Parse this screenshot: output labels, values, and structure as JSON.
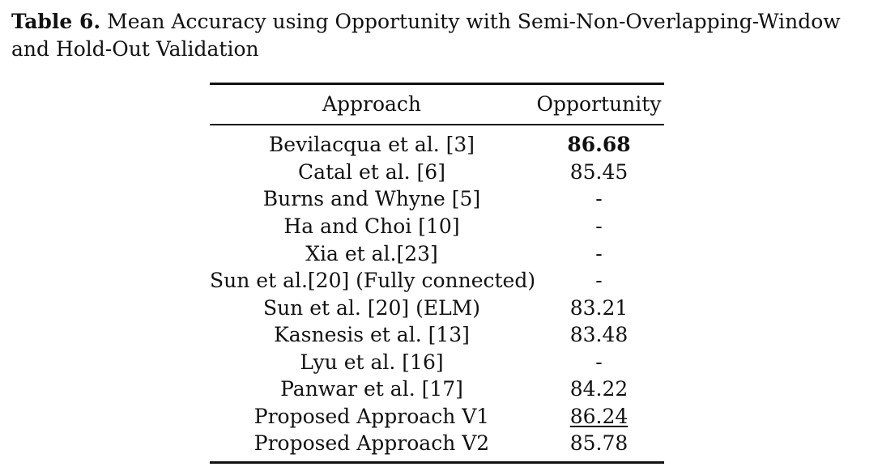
{
  "caption": {
    "label": "Table 6.",
    "text": "Mean Accuracy using Opportunity with Semi-Non-Overlapping-Window and Hold-Out Validation"
  },
  "table": {
    "headers": {
      "approach": "Approach",
      "value": "Opportunity"
    },
    "rows": [
      {
        "approach": "Bevilacqua et al. [3]",
        "value": "86.68",
        "style": "bold"
      },
      {
        "approach": "Catal et al. [6]",
        "value": "85.45",
        "style": ""
      },
      {
        "approach": "Burns and Whyne [5]",
        "value": "-",
        "style": ""
      },
      {
        "approach": "Ha and Choi [10]",
        "value": "-",
        "style": ""
      },
      {
        "approach": "Xia et al.[23]",
        "value": "-",
        "style": ""
      },
      {
        "approach": "Sun et al.[20] (Fully connected)",
        "value": "-",
        "style": ""
      },
      {
        "approach": "Sun et al. [20] (ELM)",
        "value": "83.21",
        "style": ""
      },
      {
        "approach": "Kasnesis et al. [13]",
        "value": "83.48",
        "style": ""
      },
      {
        "approach": "Lyu et al. [16]",
        "value": "-",
        "style": ""
      },
      {
        "approach": "Panwar et al. [17]",
        "value": "84.22",
        "style": ""
      },
      {
        "approach": "Proposed Approach V1",
        "value": "86.24",
        "style": "underline"
      },
      {
        "approach": "Proposed Approach V2",
        "value": "85.78",
        "style": ""
      }
    ]
  }
}
